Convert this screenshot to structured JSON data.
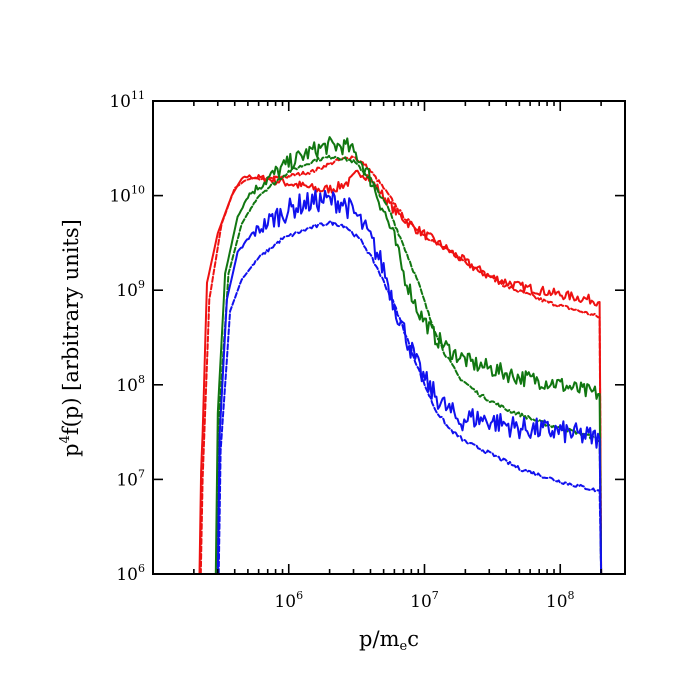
{
  "chart_data": {
    "type": "line",
    "title": "",
    "xlabel": "p/m_ec",
    "ylabel": "p^4f(p) [arbitrary units]",
    "xlabel_parts": {
      "main": "p/m",
      "sub": "e",
      "tail": "c"
    },
    "ylabel_parts": {
      "head": "p",
      "sup": "4",
      "tail": "f(p) [arbitrary units]"
    },
    "xscale": "log",
    "yscale": "log",
    "xlim": [
      100000,
      300000000
    ],
    "ylim": [
      1000000,
      100000000000
    ],
    "x_tick_labels": [
      {
        "base": "10",
        "exp": "6",
        "value": 1000000
      },
      {
        "base": "10",
        "exp": "7",
        "value": 10000000
      },
      {
        "base": "10",
        "exp": "8",
        "value": 100000000
      }
    ],
    "y_tick_labels": [
      {
        "base": "10",
        "exp": "6",
        "value": 1000000
      },
      {
        "base": "10",
        "exp": "7",
        "value": 10000000
      },
      {
        "base": "10",
        "exp": "8",
        "value": 100000000
      },
      {
        "base": "10",
        "exp": "9",
        "value": 1000000000
      },
      {
        "base": "10",
        "exp": "10",
        "value": 10000000000
      },
      {
        "base": "10",
        "exp": "11",
        "value": 100000000000
      }
    ],
    "grid": false,
    "legend": "none",
    "series": [
      {
        "color": "#ee1111",
        "style": "solid",
        "noise": 0.05,
        "points": [
          [
            220000,
            1000000.0
          ],
          [
            226000,
            12000000.0
          ],
          [
            232000,
            30000000.0
          ],
          [
            250000,
            1200000000.0
          ],
          [
            300000,
            4000000000.0
          ],
          [
            380000,
            10000000000.0
          ],
          [
            450000,
            15000000000.0
          ],
          [
            500000,
            16000000000.0
          ],
          [
            600000,
            15500000000.0
          ],
          [
            800000,
            14500000000.0
          ],
          [
            1000000,
            13500000000.0
          ],
          [
            1300000,
            12500000000.0
          ],
          [
            1700000,
            11500000000.0
          ],
          [
            2200000,
            12000000000.0
          ],
          [
            2800000,
            14000000000.0
          ],
          [
            3300000,
            18000000000.0
          ],
          [
            3800000,
            16000000000.0
          ],
          [
            4500000,
            12000000000.0
          ],
          [
            6000000,
            7000000000.0
          ],
          [
            8000000,
            4800000000.0
          ],
          [
            12000000,
            3300000000.0
          ],
          [
            20000000,
            2000000000.0
          ],
          [
            30000000,
            1400000000.0
          ],
          [
            50000000,
            1100000000.0
          ],
          [
            100000000,
            900000000.0
          ],
          [
            180000000,
            780000000.0
          ],
          [
            195000000,
            750000000.0
          ],
          [
            200000000,
            1000000.0
          ]
        ]
      },
      {
        "color": "#ee1111",
        "style": "dashed",
        "noise": 0.02,
        "points": [
          [
            225000,
            1000000.0
          ],
          [
            232000,
            10000000.0
          ],
          [
            260000,
            800000000.0
          ],
          [
            320000,
            5000000000.0
          ],
          [
            400000,
            12000000000.0
          ],
          [
            500000,
            15000000000.0
          ],
          [
            700000,
            15000000000.0
          ],
          [
            1000000,
            16000000000.0
          ],
          [
            1500000,
            18000000000.0
          ],
          [
            2200000,
            23000000000.0
          ],
          [
            3000000,
            26000000000.0
          ],
          [
            3800000,
            20000000000.0
          ],
          [
            5000000,
            12000000000.0
          ],
          [
            7000000,
            6000000000.0
          ],
          [
            10000000,
            3800000000.0
          ],
          [
            20000000,
            2000000000.0
          ],
          [
            40000000,
            1100000000.0
          ],
          [
            80000000,
            750000000.0
          ],
          [
            140000000,
            600000000.0
          ],
          [
            195000000,
            520000000.0
          ],
          [
            200000000,
            1000000.0
          ]
        ]
      },
      {
        "color": "#117711",
        "style": "solid",
        "noise": 0.09,
        "points": [
          [
            290000,
            1000000.0
          ],
          [
            300000,
            50000000.0
          ],
          [
            340000,
            1500000000.0
          ],
          [
            420000,
            6000000000.0
          ],
          [
            500000,
            10000000000.0
          ],
          [
            700000,
            15000000000.0
          ],
          [
            1000000,
            22000000000.0
          ],
          [
            1500000,
            30000000000.0
          ],
          [
            2000000,
            34000000000.0
          ],
          [
            2700000,
            33000000000.0
          ],
          [
            3300000,
            25000000000.0
          ],
          [
            4000000,
            15000000000.0
          ],
          [
            5000000,
            7000000000.0
          ],
          [
            6000000,
            3500000000.0
          ],
          [
            7000000,
            1500000000.0
          ],
          [
            9000000,
            600000000.0
          ],
          [
            12000000,
            320000000.0
          ],
          [
            16000000,
            220000000.0
          ],
          [
            22000000,
            170000000.0
          ],
          [
            30000000,
            150000000.0
          ],
          [
            50000000,
            120000000.0
          ],
          [
            90000000,
            105000000.0
          ],
          [
            150000000,
            85000000.0
          ],
          [
            195000000,
            80000000.0
          ],
          [
            200000000,
            1000000.0
          ]
        ]
      },
      {
        "color": "#117711",
        "style": "dashed",
        "noise": 0.02,
        "points": [
          [
            295000,
            1000000.0
          ],
          [
            305000,
            40000000.0
          ],
          [
            360000,
            1500000000.0
          ],
          [
            450000,
            5000000000.0
          ],
          [
            600000,
            10000000000.0
          ],
          [
            1000000,
            18000000000.0
          ],
          [
            1600000,
            24000000000.0
          ],
          [
            2200000,
            26000000000.0
          ],
          [
            3000000,
            23000000000.0
          ],
          [
            4000000,
            15000000000.0
          ],
          [
            5500000,
            7000000000.0
          ],
          [
            7000000,
            3000000000.0
          ],
          [
            9000000,
            1200000000.0
          ],
          [
            11000000,
            500000000.0
          ],
          [
            14000000,
            220000000.0
          ],
          [
            18000000,
            120000000.0
          ],
          [
            25000000,
            80000000.0
          ],
          [
            40000000,
            55000000.0
          ],
          [
            80000000,
            38000000.0
          ],
          [
            150000000,
            30000000.0
          ],
          [
            195000000,
            26000000.0
          ],
          [
            200000000,
            1000000.0
          ]
        ]
      },
      {
        "color": "#1111ee",
        "style": "solid",
        "noise": 0.12,
        "points": [
          [
            300000,
            1000000.0
          ],
          [
            310000,
            30000000.0
          ],
          [
            350000,
            800000000.0
          ],
          [
            420000,
            2500000000.0
          ],
          [
            550000,
            4000000000.0
          ],
          [
            800000,
            6000000000.0
          ],
          [
            1200000,
            8000000000.0
          ],
          [
            1800000,
            9000000000.0
          ],
          [
            2500000,
            8500000000.0
          ],
          [
            3200000,
            6000000000.0
          ],
          [
            4000000,
            3500000000.0
          ],
          [
            5000000,
            1700000000.0
          ],
          [
            6000000,
            700000000.0
          ],
          [
            7500000,
            300000000.0
          ],
          [
            9000000,
            150000000.0
          ],
          [
            11000000,
            90000000.0
          ],
          [
            14000000,
            60000000.0
          ],
          [
            18000000,
            42000000.0
          ],
          [
            22000000,
            45000000.0
          ],
          [
            30000000,
            42000000.0
          ],
          [
            50000000,
            35000000.0
          ],
          [
            100000000,
            32000000.0
          ],
          [
            195000000,
            27000000.0
          ],
          [
            200000000,
            1000000.0
          ]
        ]
      },
      {
        "color": "#1111ee",
        "style": "dashed",
        "noise": 0.02,
        "points": [
          [
            305000,
            1000000.0
          ],
          [
            315000,
            20000000.0
          ],
          [
            370000,
            600000000.0
          ],
          [
            450000,
            1300000000.0
          ],
          [
            600000,
            2200000000.0
          ],
          [
            900000,
            3500000000.0
          ],
          [
            1400000,
            4500000000.0
          ],
          [
            2000000,
            5200000000.0
          ],
          [
            2600000,
            4800000000.0
          ],
          [
            3500000,
            3200000000.0
          ],
          [
            4500000,
            1700000000.0
          ],
          [
            6000000,
            700000000.0
          ],
          [
            7500000,
            300000000.0
          ],
          [
            9500000,
            120000000.0
          ],
          [
            12000000,
            55000000.0
          ],
          [
            15000000,
            35000000.0
          ],
          [
            20000000,
            25000000.0
          ],
          [
            30000000,
            19000000.0
          ],
          [
            50000000,
            13000000.0
          ],
          [
            100000000,
            9500000.0
          ],
          [
            195000000,
            7500000.0
          ],
          [
            200000000,
            1000000.0
          ]
        ]
      }
    ]
  }
}
